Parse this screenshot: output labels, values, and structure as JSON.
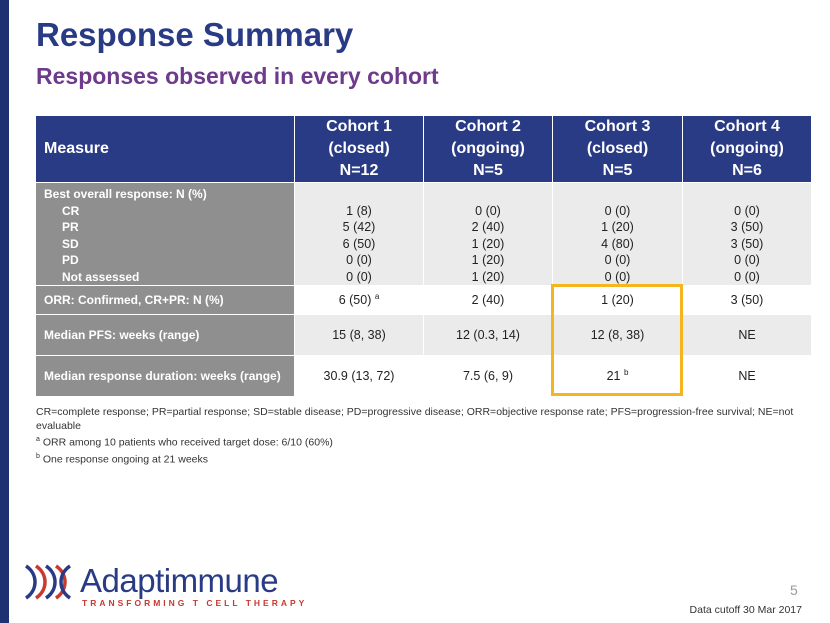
{
  "slide": {
    "title": "Response Summary",
    "subtitle": "Responses observed in every cohort",
    "page_number": "5",
    "data_cutoff": "Data cutoff 30 Mar 2017"
  },
  "table": {
    "header": {
      "measure": "Measure",
      "cohorts": [
        {
          "line1": "Cohort 1",
          "line2": "(closed)",
          "line3": "N=12"
        },
        {
          "line1": "Cohort 2",
          "line2": "(ongoing)",
          "line3": "N=5"
        },
        {
          "line1": "Cohort 3",
          "line2": "(closed)",
          "line3": "N=5"
        },
        {
          "line1": "Cohort 4",
          "line2": "(ongoing)",
          "line3": "N=6"
        }
      ]
    },
    "best_overall": {
      "label": "Best overall response: N (%)",
      "sub_labels": [
        "CR",
        "PR",
        "SD",
        "PD",
        "Not assessed"
      ],
      "values": [
        [
          "1 (8)",
          "5 (42)",
          "6 (50)",
          "0 (0)",
          "0 (0)"
        ],
        [
          "0 (0)",
          "2 (40)",
          "1 (20)",
          "1 (20)",
          "1 (20)"
        ],
        [
          "0 (0)",
          "1 (20)",
          "4 (80)",
          "0 (0)",
          "0 (0)"
        ],
        [
          "0 (0)",
          "3 (50)",
          "3 (50)",
          "0 (0)",
          "0 (0)"
        ]
      ]
    },
    "orr": {
      "label": "ORR: Confirmed, CR+PR: N (%)",
      "values": [
        "6 (50)",
        "2 (40)",
        "1 (20)",
        "3 (50)"
      ],
      "c1_sup": "a"
    },
    "pfs": {
      "label": "Median PFS: weeks (range)",
      "values": [
        "15 (8, 38)",
        "12 (0.3, 14)",
        "12 (8, 38)",
        "NE"
      ]
    },
    "duration": {
      "label": "Median response duration: weeks (range)",
      "values": [
        "30.9 (13, 72)",
        "7.5 (6, 9)",
        "21",
        "NE"
      ],
      "c3_sup": "b"
    }
  },
  "footnotes": {
    "abbreviations": "CR=complete response; PR=partial response; SD=stable disease; PD=progressive disease; ORR=objective response rate; PFS=progression-free survival; NE=not evaluable",
    "a_marker": "a",
    "a_text": "ORR among 10 patients who received target dose: 6/10 (60%)",
    "b_marker": "b",
    "b_text": "One response ongoing at 21 weeks"
  },
  "logo": {
    "name": "Adaptimmune",
    "tagline": "TRANSFORMING T CELL THERAPY",
    "icon": "adaptimmune-dna-icon"
  },
  "colors": {
    "header_blue": "#2a3b86",
    "subtitle_purple": "#6e3a8c",
    "label_gray": "#8f8f8f",
    "cell_gray": "#ebebeb",
    "highlight_gold": "#f5b51e",
    "logo_red": "#c8392e"
  }
}
